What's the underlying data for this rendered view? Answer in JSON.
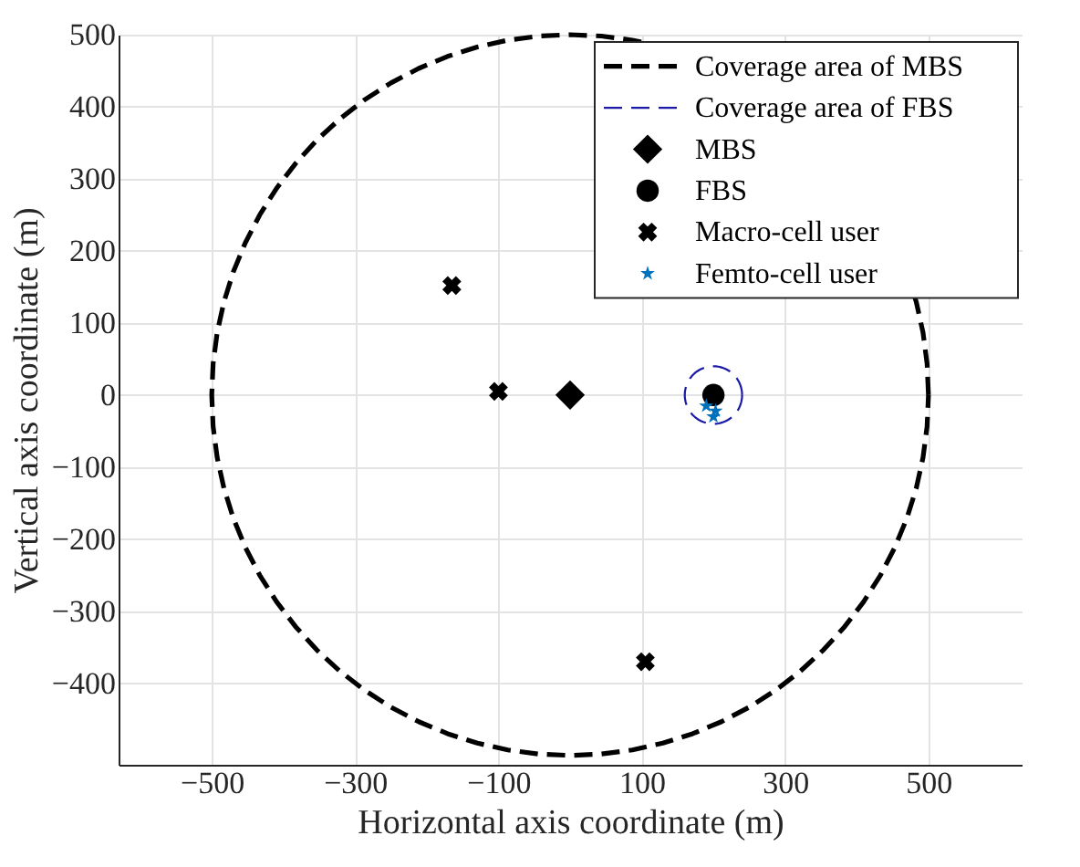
{
  "chart_data": {
    "type": "scatter",
    "xlabel": "Horizontal axis coordinate (m)",
    "ylabel": "Vertical axis coordinate (m)",
    "xlim": [
      -630,
      630
    ],
    "ylim": [
      -513,
      500
    ],
    "xticks": [
      -500,
      -300,
      -100,
      100,
      300,
      500
    ],
    "yticks": [
      -400,
      -300,
      -200,
      -100,
      0,
      100,
      200,
      300,
      400,
      500
    ],
    "grid": true,
    "legend": "top right",
    "annotations": [
      "Coverage area of MBS",
      "Coverage area of FBS"
    ],
    "series": [
      {
        "name": "MBS",
        "color": "#000000",
        "marker": "diamond",
        "x": [
          0
        ],
        "values": [
          0
        ]
      },
      {
        "name": "FBS",
        "color": "#000000",
        "marker": "circle",
        "x": [
          200
        ],
        "values": [
          0
        ]
      },
      {
        "name": "Macro-cell user",
        "color": "#000000",
        "marker": "cross",
        "x": [
          -165,
          -100,
          105
        ],
        "values": [
          152,
          5,
          -370
        ]
      },
      {
        "name": "Femto-cell user",
        "color": "#0072bd",
        "marker": "star",
        "x": [
          190,
          200,
          203
        ],
        "values": [
          -15,
          -30,
          -22
        ]
      }
    ]
  }
}
